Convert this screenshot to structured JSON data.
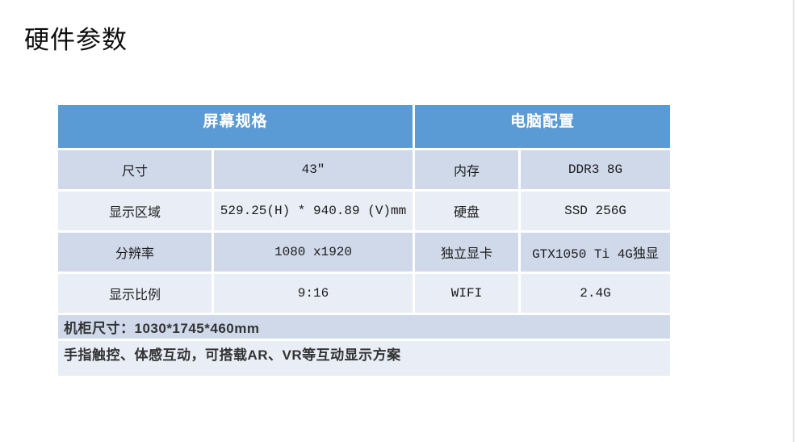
{
  "page": {
    "title": "硬件参数"
  },
  "colors": {
    "header_bg": "#5B9BD5",
    "band_dark": "#CFD9EA",
    "band_light": "#E9EDF5"
  },
  "table": {
    "section_headers": [
      {
        "label": "屏幕规格"
      },
      {
        "label": "电脑配置"
      }
    ],
    "rows": [
      {
        "left_label": "尺寸",
        "left_value": "43″",
        "right_label": "内存",
        "right_value": "DDR3 8G"
      },
      {
        "left_label": "显示区域",
        "left_value": "529.25(H) * 940.89 (V)mm",
        "right_label": "硬盘",
        "right_value": "SSD 256G"
      },
      {
        "left_label": "分辨率",
        "left_value": "1080 x1920",
        "right_label": "独立显卡",
        "right_value": "GTX1050 Ti 4G独显"
      },
      {
        "left_label": "显示比例",
        "left_value": "9:16",
        "right_label": "WIFI",
        "right_value": "2.4G"
      }
    ],
    "footer_rows": [
      {
        "text": "机柜尺寸：1030*1745*460mm"
      },
      {
        "text": "手指触控、体感互动，可搭载AR、VR等互动显示方案"
      }
    ]
  }
}
